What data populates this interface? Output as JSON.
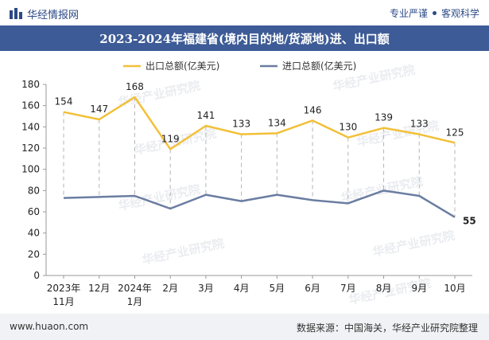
{
  "header": {
    "brand": "华经情报网",
    "tag_left": "专业严谨",
    "tag_right": "客观科学"
  },
  "title": "2023-2024年福建省(境内目的地/货源地)进、出口额",
  "footer": {
    "site": "www.huaon.com",
    "source": "数据来源：中国海关，华经产业研究院整理"
  },
  "watermark": "华经产业研究院",
  "colors": {
    "title_bg": "#3d5b96",
    "export": "#f2c038",
    "import": "#6b7da1"
  },
  "chart_data": {
    "type": "line",
    "categories": [
      "2023年\n11月",
      "12月",
      "2024年\n1月",
      "2月",
      "3月",
      "4月",
      "5月",
      "6月",
      "7月",
      "8月",
      "9月",
      "10月"
    ],
    "series": [
      {
        "name": "出口总额(亿美元)",
        "values": [
          154,
          147,
          168,
          119,
          141,
          133,
          134,
          146,
          130,
          139,
          133,
          125
        ],
        "labels": "all"
      },
      {
        "name": "进口总额(亿美元)",
        "values": [
          73,
          74,
          75,
          63,
          76,
          70,
          76,
          71,
          68,
          80,
          75,
          55
        ],
        "labels": "last"
      }
    ],
    "ylim": [
      0,
      180
    ],
    "yticks": [
      0,
      20,
      40,
      60,
      80,
      100,
      120,
      140,
      160,
      180
    ],
    "legend": "top",
    "drop_lines": true
  }
}
